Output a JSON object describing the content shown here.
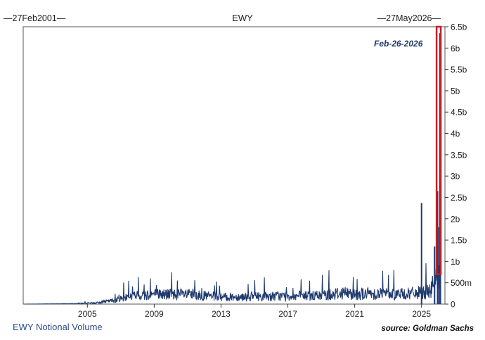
{
  "chart_data": {
    "type": "area",
    "title": "EWY",
    "date_range": {
      "start": "27Feb2001",
      "end": "27May2026"
    },
    "x_ticks": [
      "2005",
      "2009",
      "2013",
      "2017",
      "2021",
      "2025"
    ],
    "y_ticks": [
      "0",
      "500m",
      "1b",
      "1.5b",
      "2b",
      "2.5b",
      "3b",
      "3.5b",
      "4b",
      "4.5b",
      "5b",
      "5.5b",
      "6b",
      "6.5b"
    ],
    "ylim": [
      0,
      6500000000
    ],
    "xlim": [
      2001.16,
      2026.4
    ],
    "axis_side": "right",
    "grid": false,
    "series_color": "#1f3a6e",
    "highlight_color": "#c0202a",
    "annotation": "Feb-26-2026",
    "highlight_range": {
      "x": [
        2025.9,
        2026.15
      ],
      "y": [
        700000000,
        6500000000
      ]
    },
    "spikes": [
      {
        "x": 2025.0,
        "y": 2370000000
      },
      {
        "x": 2025.78,
        "y": 1350000000
      },
      {
        "x": 2025.96,
        "y": 2650000000
      },
      {
        "x": 2026.0,
        "y": 1800000000
      },
      {
        "x": 2026.1,
        "y": 6350000000
      },
      {
        "x": 2026.13,
        "y": 3400000000
      }
    ],
    "baseline_profile": [
      {
        "x": 2001.16,
        "y": 0
      },
      {
        "x": 2004.0,
        "y": 10000000
      },
      {
        "x": 2005.5,
        "y": 30000000
      },
      {
        "x": 2006.5,
        "y": 90000000
      },
      {
        "x": 2007.5,
        "y": 200000000
      },
      {
        "x": 2008.8,
        "y": 260000000
      },
      {
        "x": 2011.0,
        "y": 250000000
      },
      {
        "x": 2013.0,
        "y": 180000000
      },
      {
        "x": 2015.0,
        "y": 200000000
      },
      {
        "x": 2017.0,
        "y": 210000000
      },
      {
        "x": 2019.0,
        "y": 220000000
      },
      {
        "x": 2020.3,
        "y": 300000000
      },
      {
        "x": 2021.0,
        "y": 260000000
      },
      {
        "x": 2022.5,
        "y": 280000000
      },
      {
        "x": 2024.0,
        "y": 260000000
      },
      {
        "x": 2025.5,
        "y": 320000000
      },
      {
        "x": 2026.15,
        "y": 900000000
      }
    ]
  },
  "labels": {
    "footer_left": "EWY Notional Volume",
    "footer_right": "source: Goldman Sachs"
  }
}
